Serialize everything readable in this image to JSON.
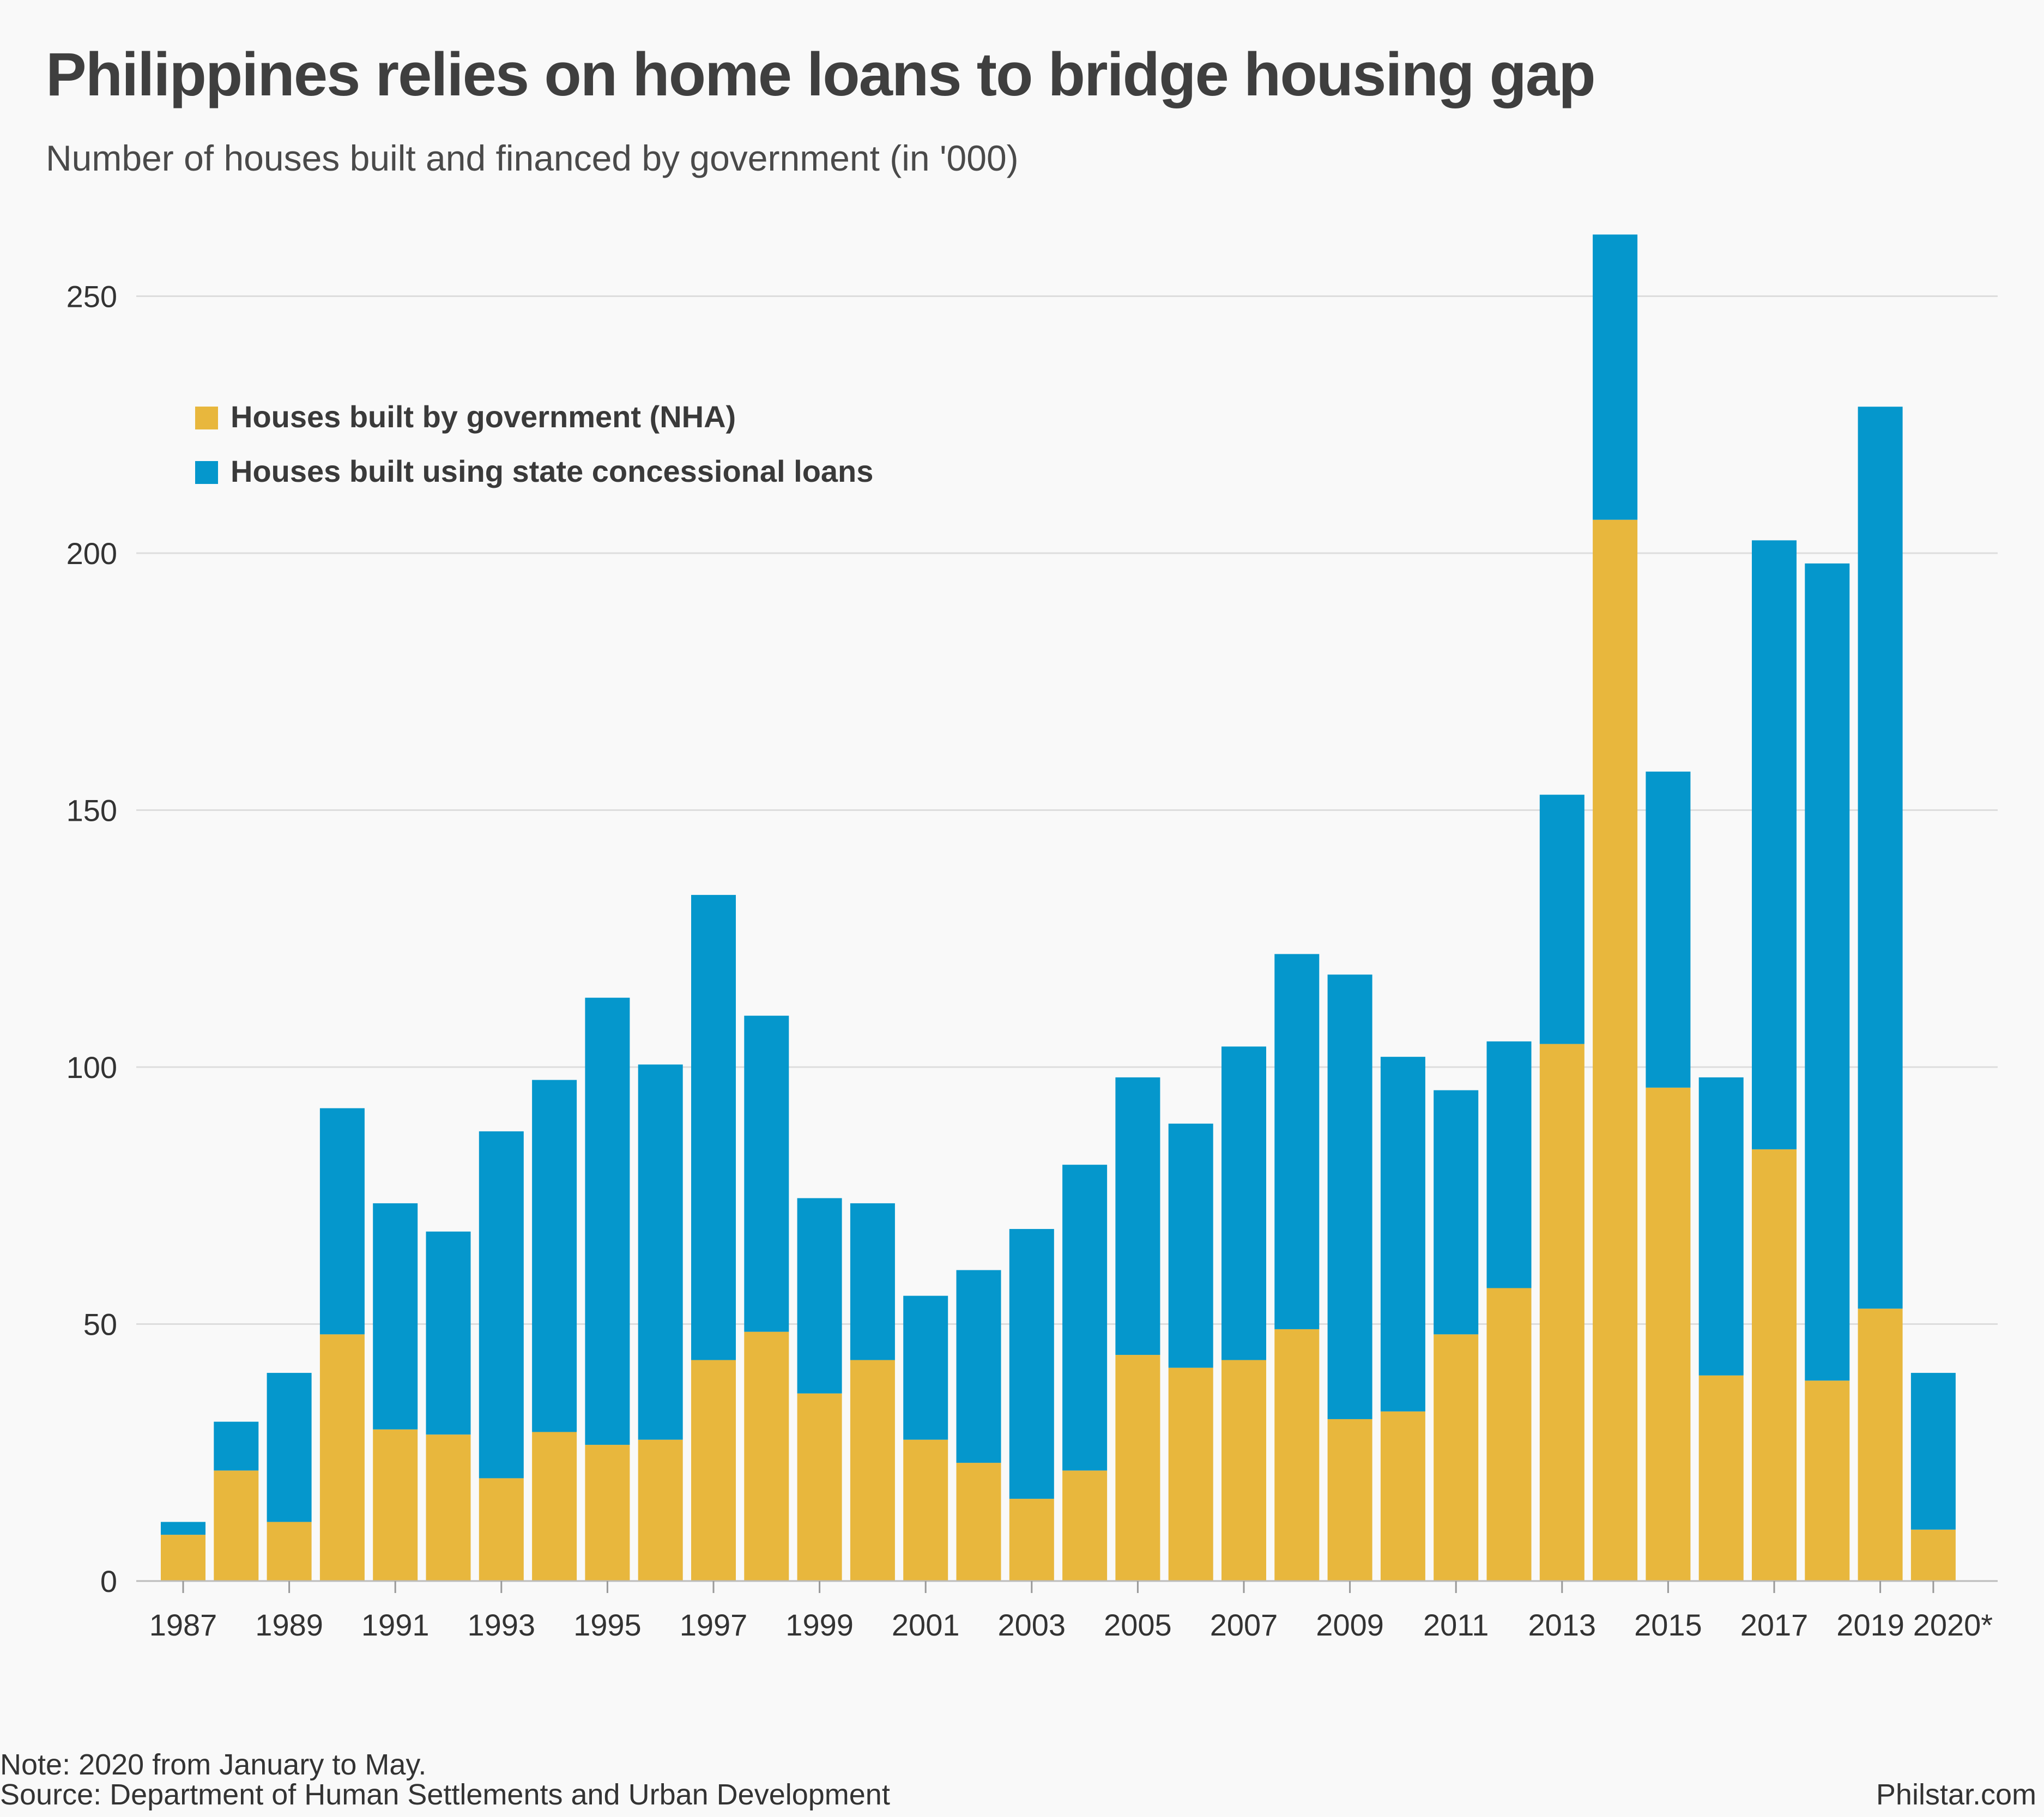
{
  "header": {
    "title": "Philippines relies on home loans to bridge housing gap",
    "subtitle": "Number of houses built and financed by government (in '000)"
  },
  "footer": {
    "note": "Note: 2020 from January to May.",
    "source": "Source: Department of Human Settlements and Urban Development",
    "credit": "Philstar.com"
  },
  "colors": {
    "nha": "#e8b73d",
    "loans": "#0597cc",
    "grid": "#dddddd",
    "text": "#333333"
  },
  "chart_data": {
    "type": "bar",
    "stacked": true,
    "title": "Philippines relies on home loans to bridge housing gap",
    "subtitle": "Number of houses built and financed by government (in '000)",
    "xlabel": "",
    "ylabel": "",
    "ylim": [
      0,
      260
    ],
    "yticks": [
      0,
      50,
      100,
      150,
      200,
      250
    ],
    "grid": true,
    "legend_position": "top-left",
    "categories": [
      "1987",
      "1988",
      "1989",
      "1990",
      "1991",
      "1992",
      "1993",
      "1994",
      "1995",
      "1996",
      "1997",
      "1998",
      "1999",
      "2000",
      "2001",
      "2002",
      "2003",
      "2004",
      "2005",
      "2006",
      "2007",
      "2008",
      "2009",
      "2010",
      "2011",
      "2012",
      "2013",
      "2014",
      "2015",
      "2016",
      "2017",
      "2018",
      "2019",
      "2020*"
    ],
    "xtick_labels": [
      "1987",
      "1989",
      "1991",
      "1993",
      "1995",
      "1997",
      "1999",
      "2001",
      "2003",
      "2005",
      "2007",
      "2009",
      "2011",
      "2013",
      "2015",
      "2017",
      "2019",
      "2020*"
    ],
    "series": [
      {
        "name": "Houses built by government (NHA)",
        "color": "#e8b73d",
        "values": [
          9,
          21.5,
          11.5,
          48,
          29.5,
          28.5,
          20,
          29,
          26.5,
          27.5,
          43,
          48.5,
          36.5,
          43,
          27.5,
          23,
          16,
          21.5,
          44,
          41.5,
          43,
          49,
          31.5,
          33,
          48,
          57,
          104.5,
          206.5,
          96,
          40,
          84,
          39,
          53,
          10
        ]
      },
      {
        "name": "Houses built using state concessional loans",
        "color": "#0597cc",
        "values": [
          2.5,
          9.5,
          29,
          44,
          44,
          39.5,
          67.5,
          68.5,
          87,
          73,
          90.5,
          61.5,
          38,
          30.5,
          28,
          37.5,
          52.5,
          59.5,
          54,
          47.5,
          61,
          73,
          86.5,
          69,
          47.5,
          48,
          48.5,
          55.5,
          61.5,
          58,
          118.5,
          159,
          175.5,
          30.5
        ]
      }
    ]
  }
}
